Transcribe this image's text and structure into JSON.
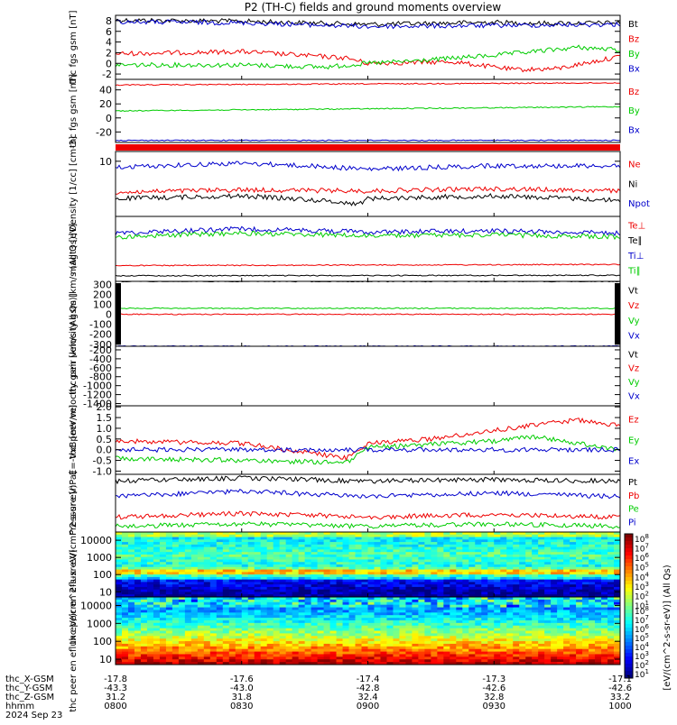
{
  "title": "P2 (TH-C) fields and ground moments overview",
  "colors": {
    "black": "#000000",
    "red": "#ee0000",
    "green": "#00cc00",
    "blue": "#0000cc"
  },
  "chart_data": [
    {
      "type": "line",
      "ylabel": "thc fgs gsm [nT]",
      "ylim": [
        -3,
        9
      ],
      "yticks": [
        {
          "v": 8,
          "t": "8"
        },
        {
          "v": 6,
          "t": "6"
        },
        {
          "v": 4,
          "t": "4"
        },
        {
          "v": 2,
          "t": "2"
        },
        {
          "v": 0,
          "t": "0"
        },
        {
          "v": -2,
          "t": "-2"
        }
      ],
      "series": [
        {
          "name": "Bt",
          "color": "black",
          "x": [
            0,
            30,
            60,
            90,
            100,
            120
          ],
          "y": [
            8.1,
            7.9,
            7.3,
            7.7,
            7.5,
            7.6
          ]
        },
        {
          "name": "Bz",
          "color": "red",
          "x": [
            0,
            30,
            55,
            60,
            80,
            95,
            105,
            120
          ],
          "y": [
            1.8,
            2.2,
            1.0,
            0.0,
            0.3,
            -1.2,
            -1.0,
            1.3
          ]
        },
        {
          "name": "By",
          "color": "green",
          "x": [
            0,
            30,
            50,
            60,
            70,
            90,
            110,
            120
          ],
          "y": [
            -0.3,
            -0.3,
            -0.7,
            0.0,
            0.4,
            1.5,
            3.0,
            2.5
          ]
        },
        {
          "name": "Bx",
          "color": "blue",
          "x": [
            0,
            30,
            60,
            90,
            120
          ],
          "y": [
            7.8,
            7.6,
            6.9,
            7.1,
            7.3
          ]
        }
      ]
    },
    {
      "type": "line",
      "ylabel": "thc fgs gsm [nT]",
      "ylim": [
        -35,
        55
      ],
      "yticks": [
        {
          "v": 40,
          "t": "40"
        },
        {
          "v": 20,
          "t": "20"
        },
        {
          "v": 0,
          "t": "0"
        },
        {
          "v": -20,
          "t": "-20"
        }
      ],
      "series": [
        {
          "name": "Bz",
          "color": "red",
          "x": [
            0,
            120
          ],
          "y": [
            47,
            50
          ]
        },
        {
          "name": "By",
          "color": "green",
          "x": [
            0,
            120
          ],
          "y": [
            10,
            16
          ]
        },
        {
          "name": "Bx",
          "color": "blue",
          "x": [
            0,
            120
          ],
          "y": [
            -32,
            -32
          ]
        }
      ]
    },
    {
      "type": "line",
      "ylabel": "Density [1/cc] [cm-3]",
      "ylim": [
        0.02,
        30
      ],
      "log": true,
      "yticks": [
        {
          "v": 10,
          "t": "10"
        }
      ],
      "series": [
        {
          "name": "Ne",
          "color": "red",
          "x": [
            0,
            30,
            60,
            90,
            120
          ],
          "y": [
            0.3,
            0.4,
            0.35,
            0.45,
            0.35
          ]
        },
        {
          "name": "Ni",
          "color": "black",
          "x": [
            0,
            30,
            58,
            60,
            90,
            120
          ],
          "y": [
            0.15,
            0.2,
            0.08,
            0.15,
            0.2,
            0.12
          ]
        },
        {
          "name": "Npot",
          "color": "blue",
          "x": [
            0,
            30,
            60,
            90,
            120
          ],
          "y": [
            5,
            8,
            4,
            6,
            6
          ]
        }
      ]
    },
    {
      "type": "line",
      "ylabel": "magt3 [eV]",
      "ylim": [
        0.7,
        5000
      ],
      "log": true,
      "yticks": [],
      "series": [
        {
          "name": "Te⊥",
          "color": "red",
          "x": [
            0,
            120
          ],
          "y": [
            6,
            7
          ]
        },
        {
          "name": "Te∥",
          "color": "black",
          "x": [
            0,
            120
          ],
          "y": [
            1.5,
            1.6
          ]
        },
        {
          "name": "Ti⊥",
          "color": "blue",
          "x": [
            0,
            30,
            60,
            90,
            120
          ],
          "y": [
            500,
            900,
            600,
            700,
            500
          ]
        },
        {
          "name": "Ti∥",
          "color": "green",
          "x": [
            0,
            30,
            60,
            90,
            120
          ],
          "y": [
            300,
            500,
            350,
            400,
            300
          ]
        }
      ]
    },
    {
      "type": "line",
      "ylabel": "thc peir velocity gsm [km/s (All Qs)]",
      "ylim": [
        -320,
        330
      ],
      "yticks": [
        {
          "v": 300,
          "t": "300"
        },
        {
          "v": 200,
          "t": "200"
        },
        {
          "v": 100,
          "t": "100"
        },
        {
          "v": 0,
          "t": "0"
        },
        {
          "v": -100,
          "t": "-100"
        },
        {
          "v": -200,
          "t": "-200"
        },
        {
          "v": -300,
          "t": "-300"
        }
      ],
      "series": [
        {
          "name": "Vt",
          "color": "black",
          "x": [
            0,
            120
          ],
          "y": [
            330,
            330
          ]
        },
        {
          "name": "Vz",
          "color": "red",
          "x": [
            0,
            120
          ],
          "y": [
            0,
            0
          ]
        },
        {
          "name": "Vy",
          "color": "green",
          "x": [
            0,
            120
          ],
          "y": [
            60,
            60
          ]
        },
        {
          "name": "Vx",
          "color": "blue",
          "x": [
            0,
            120
          ],
          "y": [
            -320,
            -320
          ]
        }
      ]
    },
    {
      "type": "line",
      "ylabel": "thc peer velocity gsm [km/s (All Qs)]",
      "ylim": [
        -1450,
        -120
      ],
      "yticks": [
        {
          "v": -200,
          "t": "-200"
        },
        {
          "v": -400,
          "t": "-400"
        },
        {
          "v": -600,
          "t": "-600"
        },
        {
          "v": -800,
          "t": "-800"
        },
        {
          "v": -1000,
          "t": "-1000"
        },
        {
          "v": -1200,
          "t": "-1200"
        },
        {
          "v": -1400,
          "t": "-1400"
        }
      ],
      "series": [
        {
          "name": "Vt",
          "color": "black",
          "x": [],
          "y": []
        },
        {
          "name": "Vz",
          "color": "red",
          "x": [],
          "y": []
        },
        {
          "name": "Vy",
          "color": "green",
          "x": [],
          "y": []
        },
        {
          "name": "Vx",
          "color": "blue",
          "x": [],
          "y": []
        }
      ]
    },
    {
      "type": "line",
      "ylabel": "E=-VxB [mV/m]",
      "ylim": [
        -1.15,
        2.05
      ],
      "yticks": [
        {
          "v": 2.0,
          "t": "2.0"
        },
        {
          "v": 1.5,
          "t": "1.5"
        },
        {
          "v": 1.0,
          "t": "1.0"
        },
        {
          "v": 0.5,
          "t": "0.5"
        },
        {
          "v": 0.0,
          "t": "0.0"
        },
        {
          "v": -0.5,
          "t": "-0.5"
        },
        {
          "v": -1.0,
          "t": "-1.0"
        }
      ],
      "series": [
        {
          "name": "Ez",
          "color": "red",
          "x": [
            0,
            30,
            55,
            60,
            75,
            90,
            110,
            120
          ],
          "y": [
            0.4,
            0.3,
            -0.4,
            0.3,
            0.5,
            0.9,
            1.4,
            1.1
          ]
        },
        {
          "name": "Ey",
          "color": "green",
          "x": [
            0,
            30,
            55,
            60,
            90,
            100,
            120
          ],
          "y": [
            -0.4,
            -0.5,
            -0.6,
            0.1,
            0.4,
            0.6,
            0.0
          ]
        },
        {
          "name": "Ex",
          "color": "blue",
          "x": [
            0,
            60,
            120
          ],
          "y": [
            0.0,
            0.0,
            0.0
          ]
        }
      ]
    },
    {
      "type": "line",
      "ylabel": "Pressure [nPa]",
      "ylim": [
        0.005,
        0.15
      ],
      "log": true,
      "yticks": [],
      "series": [
        {
          "name": "Pt",
          "color": "black",
          "x": [
            0,
            30,
            60,
            90,
            120
          ],
          "y": [
            0.1,
            0.12,
            0.1,
            0.11,
            0.1
          ]
        },
        {
          "name": "Pb",
          "color": "red",
          "x": [
            0,
            30,
            60,
            90,
            120
          ],
          "y": [
            0.012,
            0.015,
            0.012,
            0.014,
            0.012
          ]
        },
        {
          "name": "Pe",
          "color": "green",
          "x": [
            0,
            30,
            60,
            90,
            120
          ],
          "y": [
            0.007,
            0.008,
            0.007,
            0.008,
            0.007
          ]
        },
        {
          "name": "Pi",
          "color": "blue",
          "x": [
            0,
            30,
            60,
            90,
            120
          ],
          "y": [
            0.04,
            0.055,
            0.04,
            0.05,
            0.04
          ]
        }
      ]
    },
    {
      "type": "heatmap",
      "ylabel": "thc peir en eflux eV/(cm^2-s-sr-eV)",
      "ylim": [
        5,
        30000
      ],
      "log": true,
      "yticks": [
        {
          "v": 10000,
          "t": "10000"
        },
        {
          "v": 1000,
          "t": "1000"
        },
        {
          "v": 100,
          "t": "100"
        },
        {
          "v": 10,
          "t": "10"
        }
      ]
    },
    {
      "type": "heatmap",
      "ylabel": "thc peer en eflux eV/(cm^2-s-sr-eV)",
      "ylim": [
        5,
        30000
      ],
      "log": true,
      "yticks": [
        {
          "v": 10000,
          "t": "10000"
        },
        {
          "v": 1000,
          "t": "1000"
        },
        {
          "v": 100,
          "t": "100"
        },
        {
          "v": 10,
          "t": "10"
        }
      ]
    }
  ],
  "colorbar": {
    "label": "[eV/(cm^2-s-sr-eV)] (All Qs)",
    "ticks_top": [
      "10^8",
      "10^7",
      "10^6",
      "10^5",
      "10^4",
      "10^3",
      "10^2",
      "10^1"
    ],
    "ticks_bottom": [
      "10^8",
      "10^7",
      "10^6",
      "10^5",
      "10^4",
      "10^3",
      "10^2",
      "10^1"
    ]
  },
  "xaxis": {
    "xlim": [
      0,
      120
    ],
    "tick_positions": [
      0,
      30,
      60,
      90,
      120
    ],
    "rows": [
      {
        "label": "thc_X-GSM",
        "values": [
          "-17.8",
          "-17.6",
          "-17.4",
          "-17.3",
          "-17.1"
        ]
      },
      {
        "label": "thc_Y-GSM",
        "values": [
          "-43.3",
          "-43.0",
          "-42.8",
          "-42.6",
          "-42.6"
        ]
      },
      {
        "label": "thc_Z-GSM",
        "values": [
          "31.2",
          "31.8",
          "32.4",
          "32.8",
          "33.2"
        ]
      },
      {
        "label": "hhmm",
        "values": [
          "0800",
          "0830",
          "0900",
          "0930",
          "1000"
        ]
      }
    ],
    "date": "2024 Sep 23"
  }
}
